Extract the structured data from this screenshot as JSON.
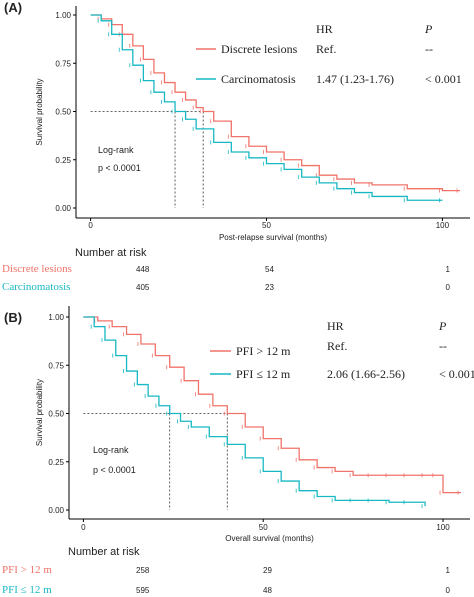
{
  "colors": {
    "red": "#f0736a",
    "cyan": "#17b8c4",
    "axis": "#000000",
    "ref": "#333333"
  },
  "chart_data": [
    {
      "type": "line",
      "panel_label": "(A)",
      "xlabel": "Post-relapse survival (months)",
      "ylabel": "Survival probability",
      "xlim": [
        0,
        105
      ],
      "ylim": [
        0,
        1.0
      ],
      "xticks": [
        0,
        50,
        100
      ],
      "yticks": [
        0.0,
        0.25,
        0.5,
        0.75,
        1.0
      ],
      "ytick_labels": [
        "0.00",
        "0.25",
        "0.50",
        "0.75",
        "1.00"
      ],
      "hr_header": "HR",
      "p_header": "P",
      "annotation_line1": "Log-rank",
      "annotation_line2": "p < 0.0001",
      "median_line_y": 0.5,
      "medians": [
        24,
        32
      ],
      "series": [
        {
          "name": "Discrete lesions",
          "color_key": "red",
          "hr": "Ref.",
          "p": "--",
          "x": [
            0,
            3,
            6,
            9,
            12,
            15,
            18,
            21,
            24,
            27,
            30,
            32,
            35,
            40,
            45,
            50,
            55,
            60,
            65,
            70,
            75,
            80,
            90,
            100,
            105
          ],
          "y": [
            1.0,
            0.98,
            0.95,
            0.9,
            0.84,
            0.77,
            0.7,
            0.65,
            0.6,
            0.56,
            0.52,
            0.5,
            0.45,
            0.37,
            0.32,
            0.29,
            0.25,
            0.22,
            0.17,
            0.15,
            0.13,
            0.12,
            0.1,
            0.09,
            0.09
          ]
        },
        {
          "name": "Carcinomatosis",
          "color_key": "cyan",
          "hr": "1.47 (1.23-1.76)",
          "p": "< 0.001",
          "x": [
            0,
            3,
            6,
            9,
            12,
            15,
            18,
            21,
            24,
            27,
            30,
            35,
            40,
            45,
            50,
            55,
            60,
            65,
            70,
            75,
            80,
            90,
            100
          ],
          "y": [
            1.0,
            0.97,
            0.9,
            0.82,
            0.74,
            0.66,
            0.6,
            0.55,
            0.5,
            0.46,
            0.41,
            0.34,
            0.29,
            0.26,
            0.23,
            0.2,
            0.16,
            0.13,
            0.1,
            0.08,
            0.06,
            0.04,
            0.04
          ]
        }
      ],
      "risk_table": {
        "title": "Number at risk",
        "rows": [
          {
            "label": "Discrete lesions",
            "color_key": "red",
            "values": [
              "448",
              "54",
              "1"
            ]
          },
          {
            "label": "Carcinomatosis",
            "color_key": "cyan",
            "values": [
              "405",
              "23",
              "0"
            ]
          }
        ]
      }
    },
    {
      "type": "line",
      "panel_label": "(B)",
      "xlabel": "Overall survival (months)",
      "ylabel": "Survival probability",
      "xlim": [
        0,
        105
      ],
      "ylim": [
        0,
        1.0
      ],
      "xticks": [
        0,
        50,
        100
      ],
      "yticks": [
        0.0,
        0.25,
        0.5,
        0.75,
        1.0
      ],
      "ytick_labels": [
        "0.00",
        "0.25",
        "0.50",
        "0.75",
        "1.00"
      ],
      "hr_header": "HR",
      "p_header": "P",
      "annotation_line1": "Log-rank",
      "annotation_line2": "p < 0.0001",
      "median_line_y": 0.5,
      "medians": [
        24,
        40
      ],
      "series": [
        {
          "name": "PFI > 12 m",
          "color_key": "red",
          "hr": "Ref.",
          "p": "--",
          "x": [
            0,
            4,
            8,
            12,
            16,
            20,
            24,
            28,
            32,
            36,
            40,
            45,
            50,
            55,
            60,
            65,
            70,
            75,
            80,
            85,
            90,
            95,
            98,
            100,
            105
          ],
          "y": [
            1.0,
            0.98,
            0.95,
            0.91,
            0.86,
            0.8,
            0.74,
            0.67,
            0.6,
            0.54,
            0.5,
            0.43,
            0.37,
            0.32,
            0.26,
            0.22,
            0.2,
            0.18,
            0.18,
            0.18,
            0.18,
            0.18,
            0.18,
            0.09,
            0.09
          ]
        },
        {
          "name": "PFI ≤ 12 m",
          "color_key": "cyan",
          "hr": "2.06 (1.66-2.56)",
          "p": "< 0.001",
          "x": [
            0,
            3,
            6,
            9,
            12,
            15,
            18,
            21,
            24,
            27,
            30,
            35,
            40,
            45,
            50,
            55,
            60,
            65,
            70,
            75,
            80,
            85,
            90,
            95
          ],
          "y": [
            1.0,
            0.95,
            0.88,
            0.8,
            0.72,
            0.65,
            0.59,
            0.54,
            0.5,
            0.46,
            0.43,
            0.38,
            0.34,
            0.27,
            0.2,
            0.15,
            0.1,
            0.07,
            0.05,
            0.05,
            0.05,
            0.04,
            0.04,
            0.02
          ]
        }
      ],
      "risk_table": {
        "title": "Number at risk",
        "rows": [
          {
            "label": "PFI > 12 m",
            "color_key": "red",
            "values": [
              "258",
              "29",
              "1"
            ]
          },
          {
            "label": "PFI ≤ 12 m",
            "color_key": "cyan",
            "values": [
              "595",
              "48",
              "0"
            ]
          }
        ]
      }
    }
  ]
}
